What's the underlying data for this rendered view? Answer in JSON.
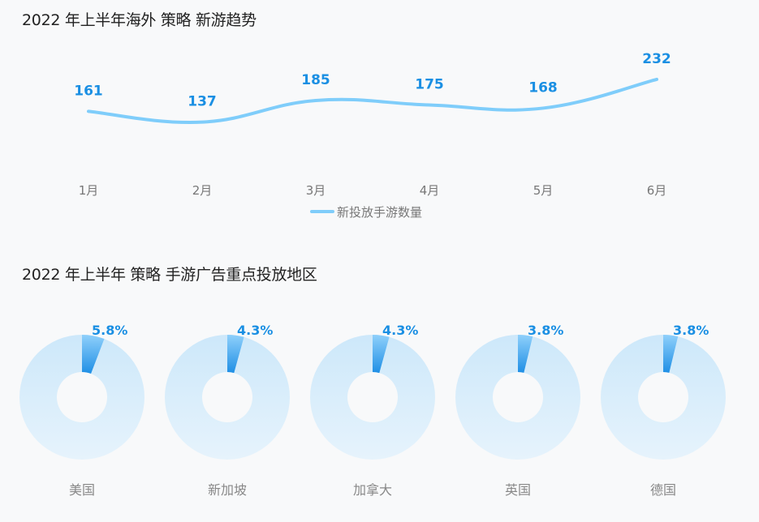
{
  "chart_data": [
    {
      "type": "line",
      "title": "2022 年上半年海外 策略 新游趋势",
      "categories": [
        "1月",
        "2月",
        "3月",
        "4月",
        "5月",
        "6月"
      ],
      "series": [
        {
          "name": "新投放手游数量",
          "values": [
            161,
            137,
            185,
            175,
            168,
            232
          ]
        }
      ],
      "ylim": [
        -400,
        320
      ],
      "grid": false,
      "legend": "bottom-center",
      "colors": {
        "line": "#7fcdfa",
        "label": "#1a8fe3"
      }
    },
    {
      "type": "pie",
      "title": "2022 年上半年 策略 手游广告重点投放地区",
      "categories": [
        "美国",
        "新加坡",
        "加拿大",
        "英国",
        "德国"
      ],
      "values": [
        5.8,
        4.3,
        4.3,
        3.8,
        3.8
      ],
      "value_labels": [
        "5.8%",
        "4.3%",
        "4.3%",
        "3.8%",
        "3.8%"
      ],
      "unit": "%",
      "colors": {
        "slice_dark": "#1f8fe5",
        "slice_light": "#8fd0fb",
        "ring_top": "#cde8fa",
        "ring_bottom": "#e6f3fc",
        "label": "#1a8fe3"
      }
    }
  ]
}
